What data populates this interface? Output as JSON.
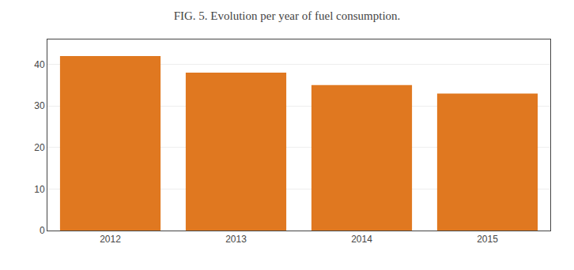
{
  "chart_data": {
    "type": "bar",
    "title": "FIG. 5. Evolution per year of fuel consumption.",
    "categories": [
      "2012",
      "2013",
      "2014",
      "2015"
    ],
    "values": [
      42,
      38,
      35,
      33
    ],
    "color": "#e07820",
    "ylim": [
      0,
      46
    ],
    "yticks": [
      0,
      10,
      20,
      30,
      40
    ],
    "grid": true
  }
}
